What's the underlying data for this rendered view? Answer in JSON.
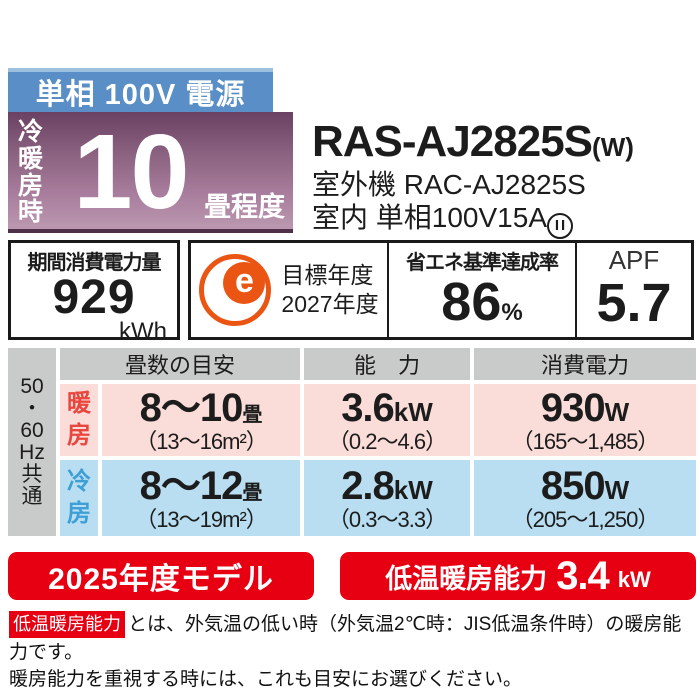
{
  "power_bar": {
    "label": "単相 100V 電源"
  },
  "capacity": {
    "prefix": "冷\n暖\n房\n時",
    "value": "10",
    "suffix": "畳程度"
  },
  "model": {
    "name": "RAS-AJ2825S",
    "color_code": "(W)",
    "outdoor_unit": "室外機 RAC-AJ2825S",
    "indoor_power": "室内 単相100V15A",
    "plug_symbol": "II"
  },
  "energy": {
    "period_consumption": {
      "title": "期間消費電力量",
      "value": "929",
      "unit": "kWh"
    },
    "target": {
      "mark": "e",
      "text": "目標年度\n2027年度"
    },
    "achievement": {
      "title": "省エネ基準達成率",
      "value": "86",
      "unit": "%"
    },
    "apf": {
      "title": "APF",
      "value": "5.7"
    }
  },
  "table": {
    "sidebar": "50\n・\n60\nHz\n共\n通",
    "headers": {
      "size": "畳数の目安",
      "capacity": "能　力",
      "power": "消費電力"
    },
    "rows": [
      {
        "mode": "暖\n房",
        "size_value": "8～10",
        "size_unit": "畳",
        "size_range": "（13～16m²）",
        "cap_value": "3.6",
        "cap_unit": "kW",
        "cap_range": "（0.2～4.6）",
        "power_value": "930",
        "power_unit": "W",
        "power_range": "（165～1,485）"
      },
      {
        "mode": "冷\n房",
        "size_value": "8～12",
        "size_unit": "畳",
        "size_range": "（13～19m²）",
        "cap_value": "2.8",
        "cap_unit": "kW",
        "cap_range": "（0.3～3.3）",
        "power_value": "850",
        "power_unit": "W",
        "power_range": "（205～1,250）"
      }
    ]
  },
  "badges": {
    "model_year": "2025年度モデル",
    "low_temp": {
      "label": "低温暖房能力",
      "value": "3.4",
      "unit": "kW"
    }
  },
  "footnote": {
    "tag": "低温暖房能力",
    "line1": "とは、外気温の低い時（外気温2℃時：JIS低温条件時）の暖房能力です。",
    "line2": "暖房能力を重視する時には、これも目安にお選びください。"
  },
  "colors": {
    "brand_red": "#e60012",
    "bar_blue": "#5a8ec6",
    "purple_top": "#6b4163",
    "purple_bottom": "#bb98b0",
    "heating_bg": "#fadcd8",
    "heating_text": "#e8473f",
    "cooling_bg": "#b9def1",
    "cooling_text": "#3d9fd6",
    "header_gray": "#c9caca",
    "emark_orange": "#ea5514"
  }
}
